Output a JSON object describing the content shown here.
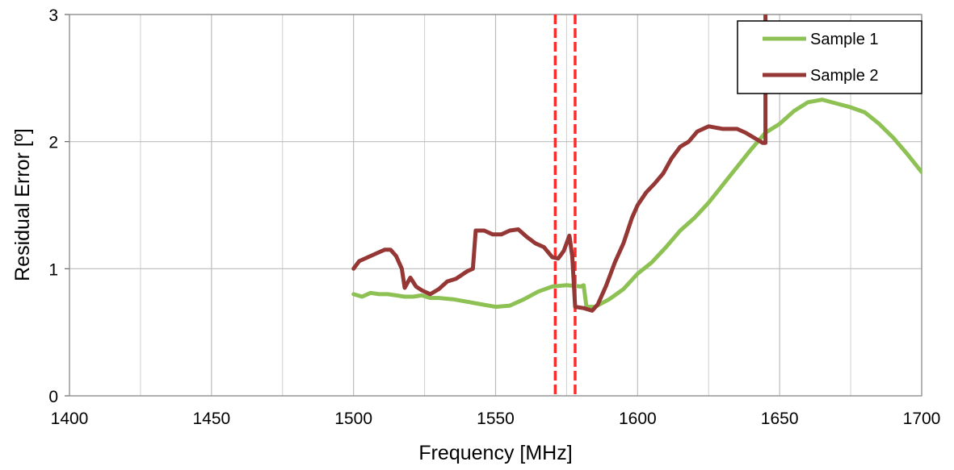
{
  "chart_data": {
    "type": "line",
    "title": "",
    "xlabel": "Frequency [MHz]",
    "ylabel": "Residual Error [º]",
    "xlim": [
      1400,
      1700
    ],
    "ylim": [
      0,
      3
    ],
    "x_ticks": [
      "1400",
      "1450",
      "1500",
      "1550",
      "1600",
      "1650",
      "1700"
    ],
    "y_ticks": [
      "0",
      "1",
      "2",
      "3"
    ],
    "x_tick_values": [
      1400,
      1450,
      1500,
      1550,
      1600,
      1650,
      1700
    ],
    "y_tick_values": [
      0,
      1,
      2,
      3
    ],
    "x_minor_gridlines": [
      1425,
      1475,
      1525,
      1575,
      1625,
      1675
    ],
    "grid": true,
    "legend_position": "top-right",
    "reference_lines": {
      "style": "dashed",
      "color": "#ff2a2a",
      "x": [
        1571,
        1578
      ]
    },
    "series": [
      {
        "name": "Sample 1",
        "color": "#8ec153",
        "points": [
          [
            1500,
            0.8
          ],
          [
            1503,
            0.78
          ],
          [
            1506,
            0.81
          ],
          [
            1509,
            0.8
          ],
          [
            1512,
            0.8
          ],
          [
            1515,
            0.79
          ],
          [
            1518,
            0.78
          ],
          [
            1521,
            0.78
          ],
          [
            1524,
            0.79
          ],
          [
            1527,
            0.77
          ],
          [
            1530,
            0.77
          ],
          [
            1535,
            0.76
          ],
          [
            1540,
            0.74
          ],
          [
            1545,
            0.72
          ],
          [
            1550,
            0.7
          ],
          [
            1555,
            0.71
          ],
          [
            1560,
            0.76
          ],
          [
            1565,
            0.82
          ],
          [
            1570,
            0.86
          ],
          [
            1575,
            0.87
          ],
          [
            1580,
            0.86
          ],
          [
            1581,
            0.87
          ],
          [
            1582,
            0.7
          ],
          [
            1585,
            0.7
          ],
          [
            1590,
            0.76
          ],
          [
            1595,
            0.84
          ],
          [
            1600,
            0.96
          ],
          [
            1605,
            1.05
          ],
          [
            1610,
            1.17
          ],
          [
            1615,
            1.3
          ],
          [
            1620,
            1.4
          ],
          [
            1625,
            1.52
          ],
          [
            1630,
            1.66
          ],
          [
            1635,
            1.8
          ],
          [
            1640,
            1.94
          ],
          [
            1645,
            2.07
          ],
          [
            1650,
            2.14
          ],
          [
            1655,
            2.24
          ],
          [
            1660,
            2.31
          ],
          [
            1665,
            2.33
          ],
          [
            1670,
            2.3
          ],
          [
            1675,
            2.27
          ],
          [
            1680,
            2.23
          ],
          [
            1685,
            2.14
          ],
          [
            1690,
            2.03
          ],
          [
            1695,
            1.9
          ],
          [
            1700,
            1.76
          ]
        ]
      },
      {
        "name": "Sample 2",
        "color": "#953735",
        "points": [
          [
            1500,
            1.0
          ],
          [
            1502,
            1.06
          ],
          [
            1505,
            1.09
          ],
          [
            1508,
            1.12
          ],
          [
            1511,
            1.15
          ],
          [
            1513,
            1.15
          ],
          [
            1515,
            1.1
          ],
          [
            1517,
            1.0
          ],
          [
            1518,
            0.85
          ],
          [
            1520,
            0.93
          ],
          [
            1522,
            0.86
          ],
          [
            1524,
            0.83
          ],
          [
            1527,
            0.8
          ],
          [
            1530,
            0.84
          ],
          [
            1533,
            0.9
          ],
          [
            1536,
            0.92
          ],
          [
            1540,
            0.98
          ],
          [
            1542,
            1.0
          ],
          [
            1543,
            1.3
          ],
          [
            1546,
            1.3
          ],
          [
            1549,
            1.27
          ],
          [
            1552,
            1.27
          ],
          [
            1555,
            1.3
          ],
          [
            1558,
            1.31
          ],
          [
            1561,
            1.25
          ],
          [
            1564,
            1.2
          ],
          [
            1567,
            1.17
          ],
          [
            1570,
            1.09
          ],
          [
            1572,
            1.08
          ],
          [
            1574,
            1.14
          ],
          [
            1576,
            1.26
          ],
          [
            1577,
            1.1
          ],
          [
            1578,
            0.7
          ],
          [
            1581,
            0.69
          ],
          [
            1584,
            0.67
          ],
          [
            1586,
            0.72
          ],
          [
            1589,
            0.87
          ],
          [
            1592,
            1.05
          ],
          [
            1595,
            1.2
          ],
          [
            1598,
            1.4
          ],
          [
            1600,
            1.5
          ],
          [
            1603,
            1.6
          ],
          [
            1606,
            1.67
          ],
          [
            1609,
            1.75
          ],
          [
            1612,
            1.87
          ],
          [
            1615,
            1.96
          ],
          [
            1618,
            2.0
          ],
          [
            1621,
            2.08
          ],
          [
            1625,
            2.12
          ],
          [
            1630,
            2.1
          ],
          [
            1635,
            2.1
          ],
          [
            1638,
            2.07
          ],
          [
            1641,
            2.03
          ],
          [
            1644,
            1.99
          ],
          [
            1645,
            1.99
          ],
          [
            1645,
            3.0
          ]
        ]
      }
    ]
  }
}
